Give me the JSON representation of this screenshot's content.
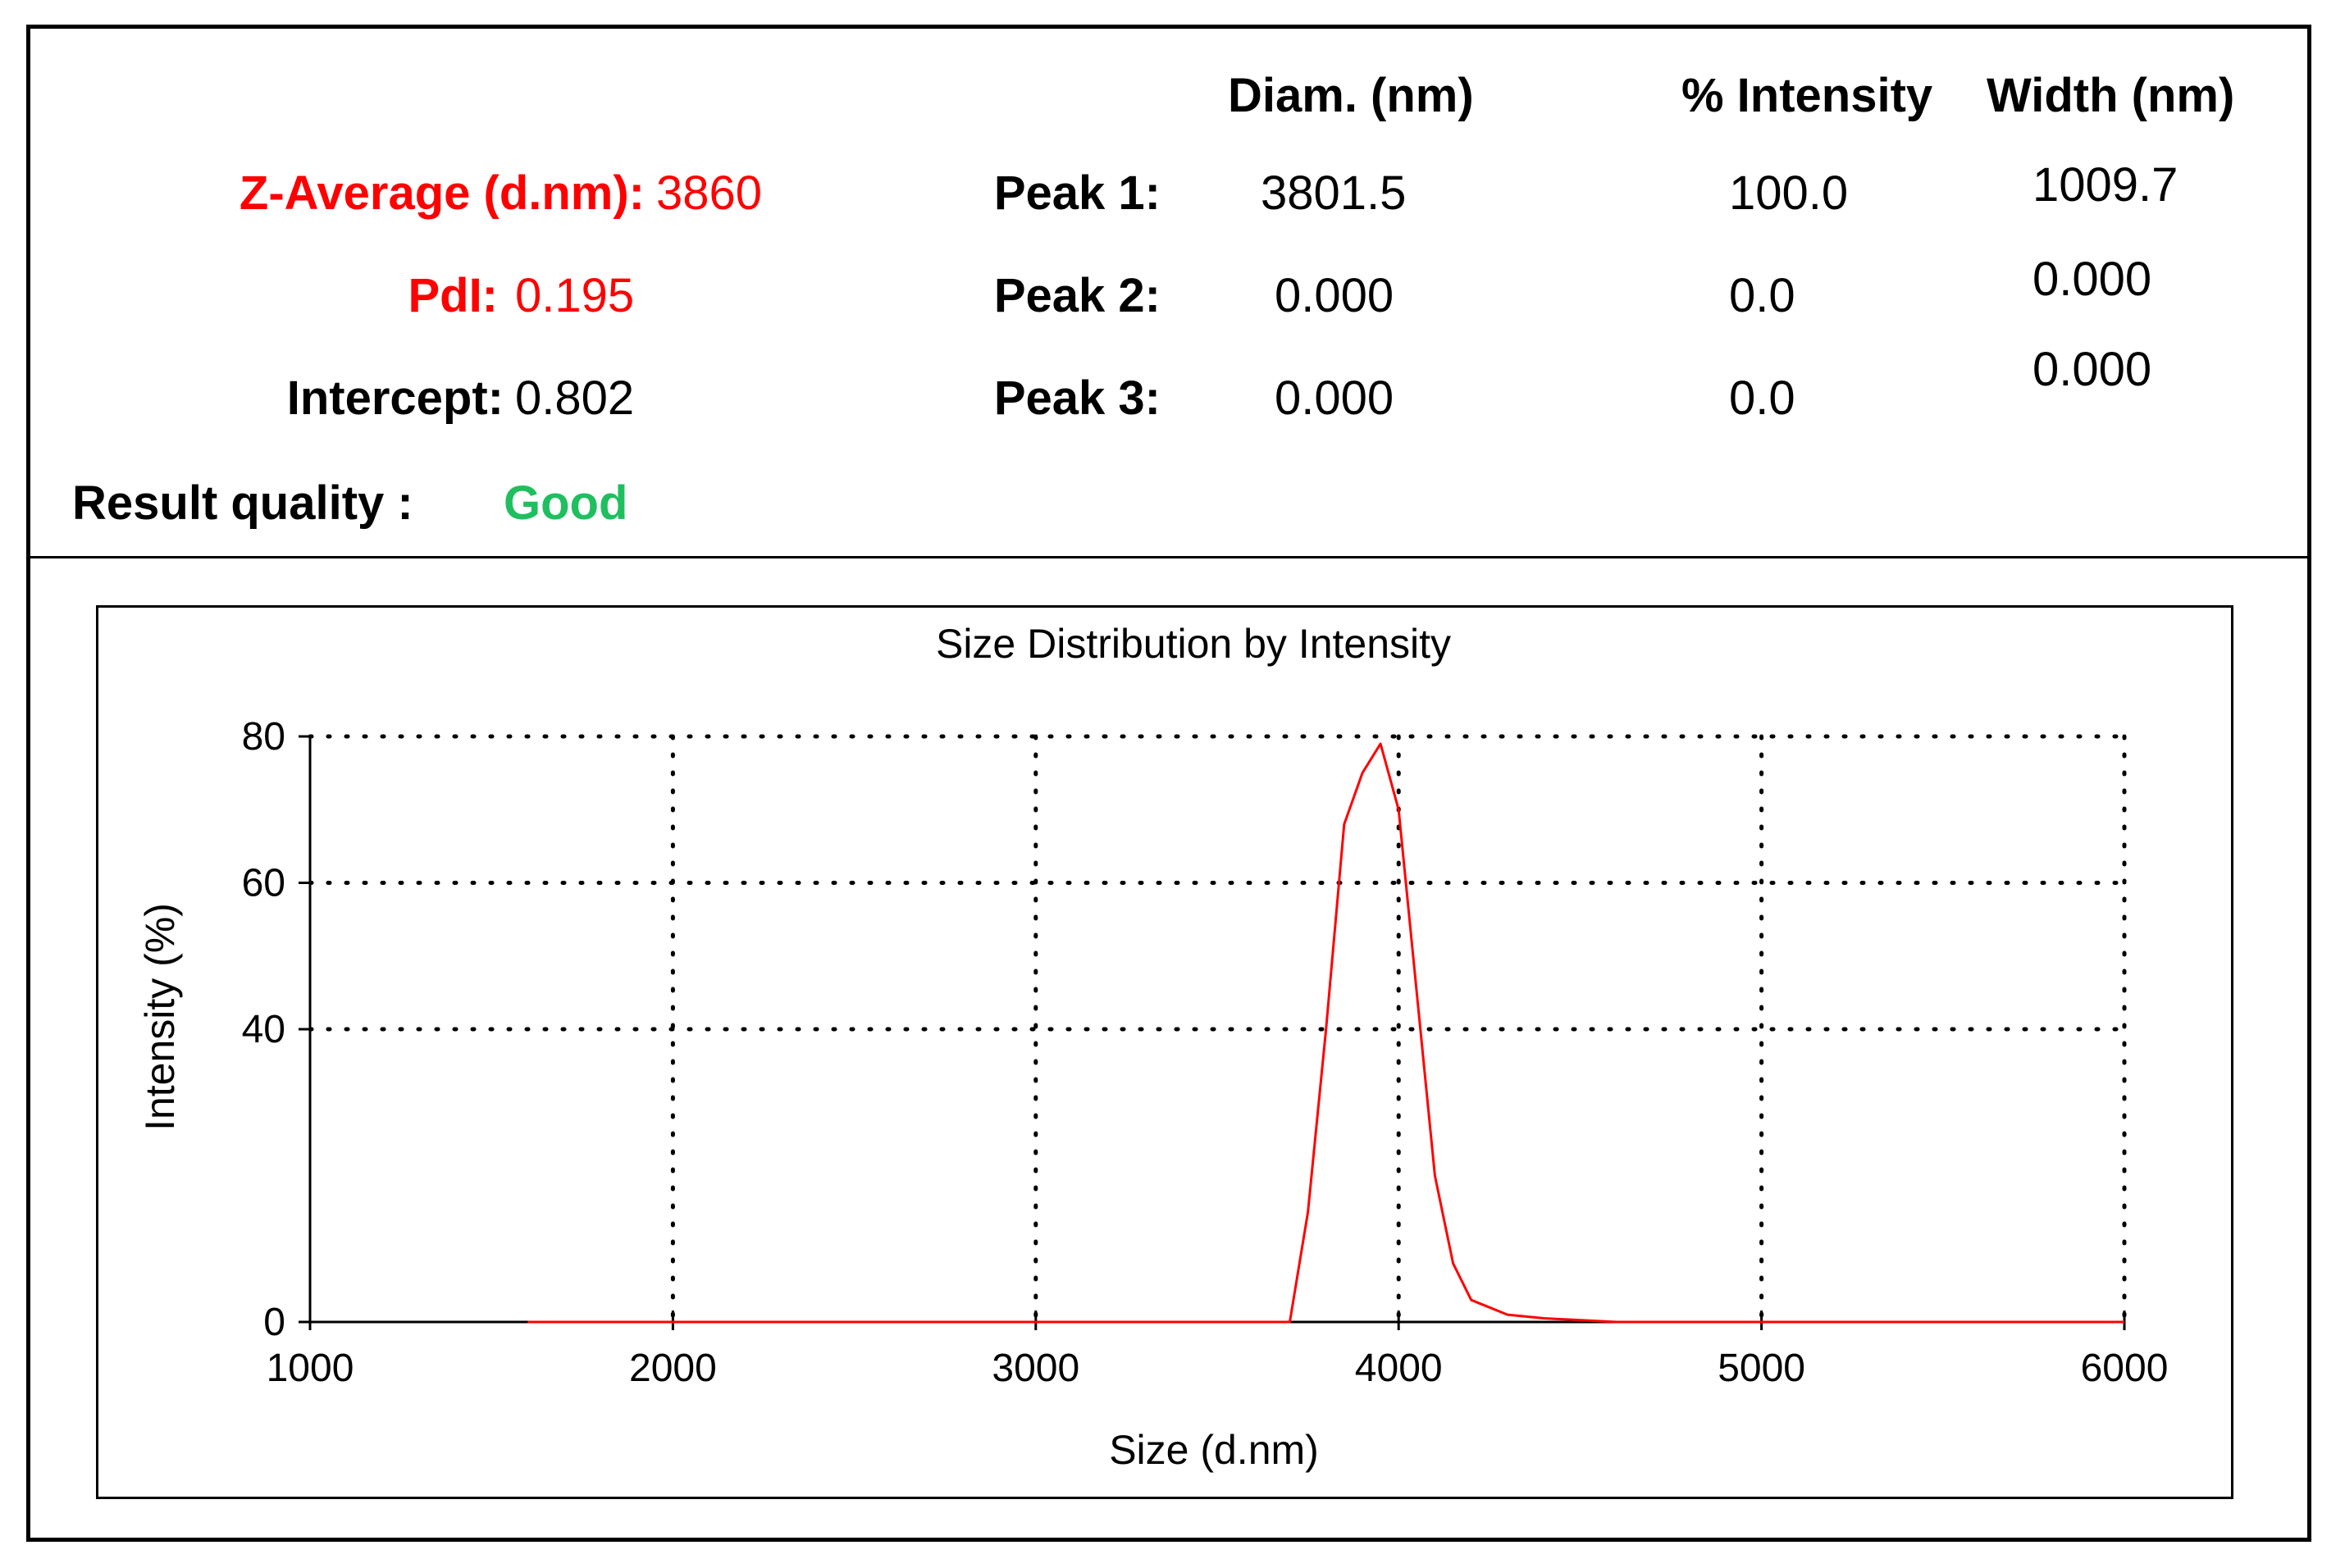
{
  "summary": {
    "z_average_label": "Z-Average (d.nm):",
    "z_average_value": "3860",
    "pdi_label": "PdI:",
    "pdi_value": "0.195",
    "intercept_label": "Intercept:",
    "intercept_value": "0.802",
    "result_quality_label": "Result quality :",
    "result_quality_value": "Good"
  },
  "peaks_table": {
    "headers": [
      "Diam. (nm)",
      "% Intensity",
      "Width (nm)"
    ],
    "rows": [
      {
        "label": "Peak 1:",
        "diam": "3801.5",
        "intensity": "100.0",
        "width": "1009.7"
      },
      {
        "label": "Peak 2:",
        "diam": "0.000",
        "intensity": "0.0",
        "width": "0.000"
      },
      {
        "label": "Peak 3:",
        "diam": "0.000",
        "intensity": "0.0",
        "width": "0.000"
      }
    ]
  },
  "colors": {
    "summary_red": "#ff0000",
    "quality_green": "#1fbf5f",
    "series_line": "#ff0000",
    "axis": "#000000"
  },
  "chart_data": {
    "type": "line",
    "title": "Size Distribution by Intensity",
    "xlabel": "Size (d.nm)",
    "ylabel": "Intensity (%)",
    "xlim": [
      1000,
      6000
    ],
    "ylim": [
      0,
      80
    ],
    "x_ticks": [
      1000,
      2000,
      3000,
      4000,
      5000,
      6000
    ],
    "x_tick_labels": [
      "1000",
      "2000",
      "3000",
      "4000",
      "5000",
      "6000"
    ],
    "y_ticks": [
      0,
      40,
      60,
      80
    ],
    "y_tick_labels": [
      "0",
      "40",
      "60",
      "80"
    ],
    "grid": true,
    "legend": "none",
    "series": [
      {
        "x": [
          1600,
          2500,
          3000,
          3500,
          3700,
          3750,
          3800,
          3850,
          3900,
          3950,
          4000,
          4050,
          4100,
          4150,
          4200,
          4300,
          4400,
          4600,
          5000,
          5300,
          6000
        ],
        "y": [
          0,
          0,
          0,
          0,
          0,
          15,
          40,
          68,
          75,
          79,
          70,
          45,
          20,
          8,
          3,
          1,
          0.5,
          0,
          0,
          0,
          0
        ]
      }
    ]
  }
}
